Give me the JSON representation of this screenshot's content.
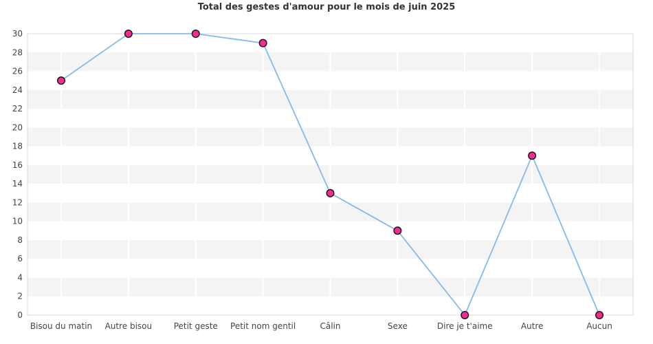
{
  "chart_data": {
    "type": "line",
    "title": "Total des gestes d'amour pour le mois de juin 2025",
    "categories": [
      "Bisou du matin",
      "Autre bisou",
      "Petit geste",
      "Petit nom gentil",
      "Câlin",
      "Sexe",
      "Dire je t'aime",
      "Autre",
      "Aucun"
    ],
    "values": [
      25,
      30,
      30,
      29,
      13,
      9,
      0,
      17,
      0
    ],
    "xlabel": "",
    "ylabel": "",
    "ylim": [
      0,
      30
    ],
    "ytick_step": 2,
    "grid": "alternating-horizontal-bands-with-white-vertical-gridlines",
    "legend": "none",
    "colors": {
      "line": "#85b9ea",
      "marker_fill": "#f02d91",
      "marker_stroke": "#111111",
      "band": "#f4f4f4",
      "frame": "#d8d8d8",
      "tick_text": "#444444",
      "title_text": "#333333",
      "background": "#ffffff"
    }
  }
}
